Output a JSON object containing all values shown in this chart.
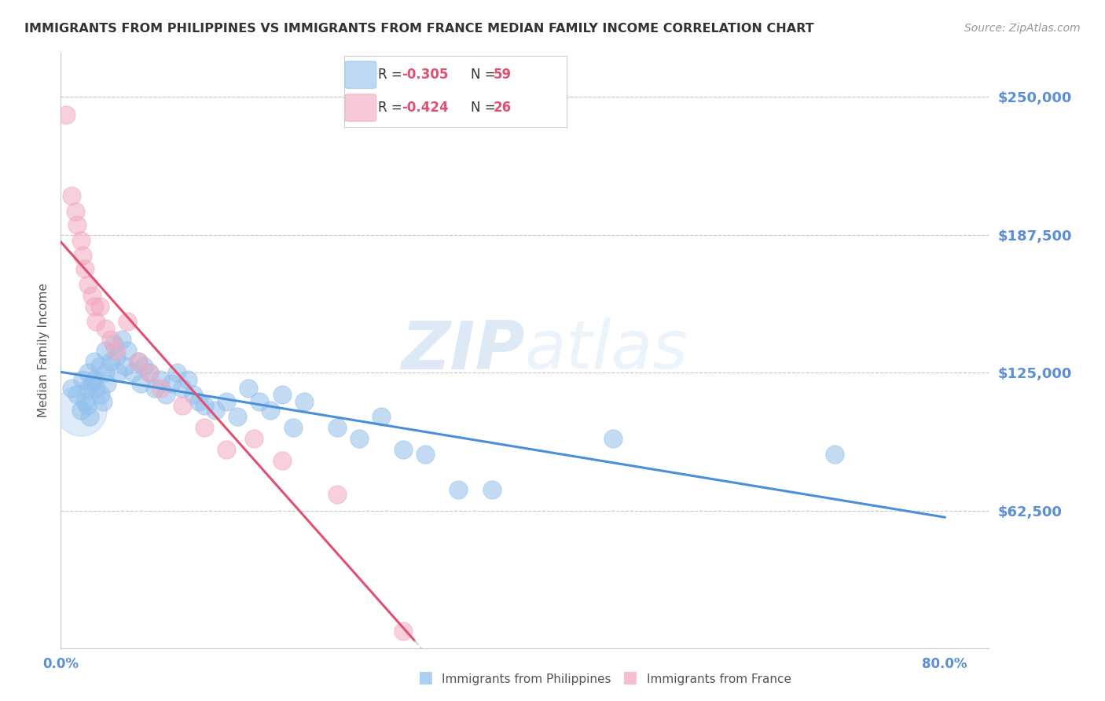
{
  "title": "IMMIGRANTS FROM PHILIPPINES VS IMMIGRANTS FROM FRANCE MEDIAN FAMILY INCOME CORRELATION CHART",
  "source": "Source: ZipAtlas.com",
  "ylabel": "Median Family Income",
  "yticks": [
    0,
    62500,
    125000,
    187500,
    250000
  ],
  "ytick_labels": [
    "",
    "$62,500",
    "$125,000",
    "$187,500",
    "$250,000"
  ],
  "xticks": [
    0.0,
    0.1,
    0.2,
    0.3,
    0.4,
    0.5,
    0.6,
    0.7,
    0.8
  ],
  "xtick_labels": [
    "0.0%",
    "",
    "",
    "",
    "",
    "",
    "",
    "",
    "80.0%"
  ],
  "xlim": [
    0.0,
    0.84
  ],
  "ylim": [
    0,
    270000
  ],
  "watermark": "ZIPatlas",
  "legend_r1": "-0.305",
  "legend_n1": "59",
  "legend_r2": "-0.424",
  "legend_n2": "26",
  "series1_label": "Immigrants from Philippines",
  "series2_label": "Immigrants from France",
  "series1_color": "#92C0EC",
  "series2_color": "#F4A8C0",
  "trendline1_color": "#4A90D9",
  "trendline2_color": "#E05070",
  "trendline2_dash_color": "#D8B0C0",
  "background_color": "#FFFFFF",
  "grid_color": "#C8C8C8",
  "title_color": "#333333",
  "ylabel_color": "#555555",
  "ytick_label_color": "#5B8FD4",
  "xtick_label_color": "#5B8FD4",
  "source_color": "#999999",
  "legend_text_color": "#333333",
  "legend_value_color": "#E05070",
  "philippines_x": [
    0.01,
    0.015,
    0.018,
    0.02,
    0.022,
    0.024,
    0.025,
    0.025,
    0.026,
    0.028,
    0.03,
    0.03,
    0.032,
    0.035,
    0.036,
    0.038,
    0.04,
    0.04,
    0.042,
    0.045,
    0.048,
    0.05,
    0.052,
    0.055,
    0.058,
    0.06,
    0.065,
    0.07,
    0.072,
    0.075,
    0.08,
    0.085,
    0.09,
    0.095,
    0.1,
    0.105,
    0.11,
    0.115,
    0.12,
    0.125,
    0.13,
    0.14,
    0.15,
    0.16,
    0.17,
    0.18,
    0.19,
    0.2,
    0.21,
    0.22,
    0.25,
    0.27,
    0.29,
    0.31,
    0.33,
    0.36,
    0.39,
    0.5,
    0.7
  ],
  "philippines_y": [
    118000,
    115000,
    108000,
    122000,
    112000,
    110000,
    125000,
    118000,
    105000,
    120000,
    130000,
    122000,
    118000,
    128000,
    115000,
    112000,
    135000,
    125000,
    120000,
    130000,
    138000,
    132000,
    125000,
    140000,
    128000,
    135000,
    125000,
    130000,
    120000,
    128000,
    125000,
    118000,
    122000,
    115000,
    120000,
    125000,
    118000,
    122000,
    115000,
    112000,
    110000,
    108000,
    112000,
    105000,
    118000,
    112000,
    108000,
    115000,
    100000,
    112000,
    100000,
    95000,
    105000,
    90000,
    88000,
    72000,
    72000,
    95000,
    88000
  ],
  "philippines_large": [
    0.018,
    108000,
    2200
  ],
  "france_x": [
    0.005,
    0.01,
    0.013,
    0.015,
    0.018,
    0.02,
    0.022,
    0.025,
    0.028,
    0.03,
    0.032,
    0.035,
    0.04,
    0.045,
    0.05,
    0.06,
    0.07,
    0.08,
    0.09,
    0.11,
    0.13,
    0.15,
    0.175,
    0.2,
    0.25,
    0.31
  ],
  "france_y": [
    242000,
    205000,
    198000,
    192000,
    185000,
    178000,
    172000,
    165000,
    160000,
    155000,
    148000,
    155000,
    145000,
    140000,
    135000,
    148000,
    130000,
    125000,
    118000,
    110000,
    100000,
    90000,
    95000,
    85000,
    70000,
    8000
  ],
  "trendline1_x_start": 0.0,
  "trendline1_x_end": 0.8,
  "trendline2_solid_x_end": 0.32,
  "trendline2_dash_x_end": 0.5
}
